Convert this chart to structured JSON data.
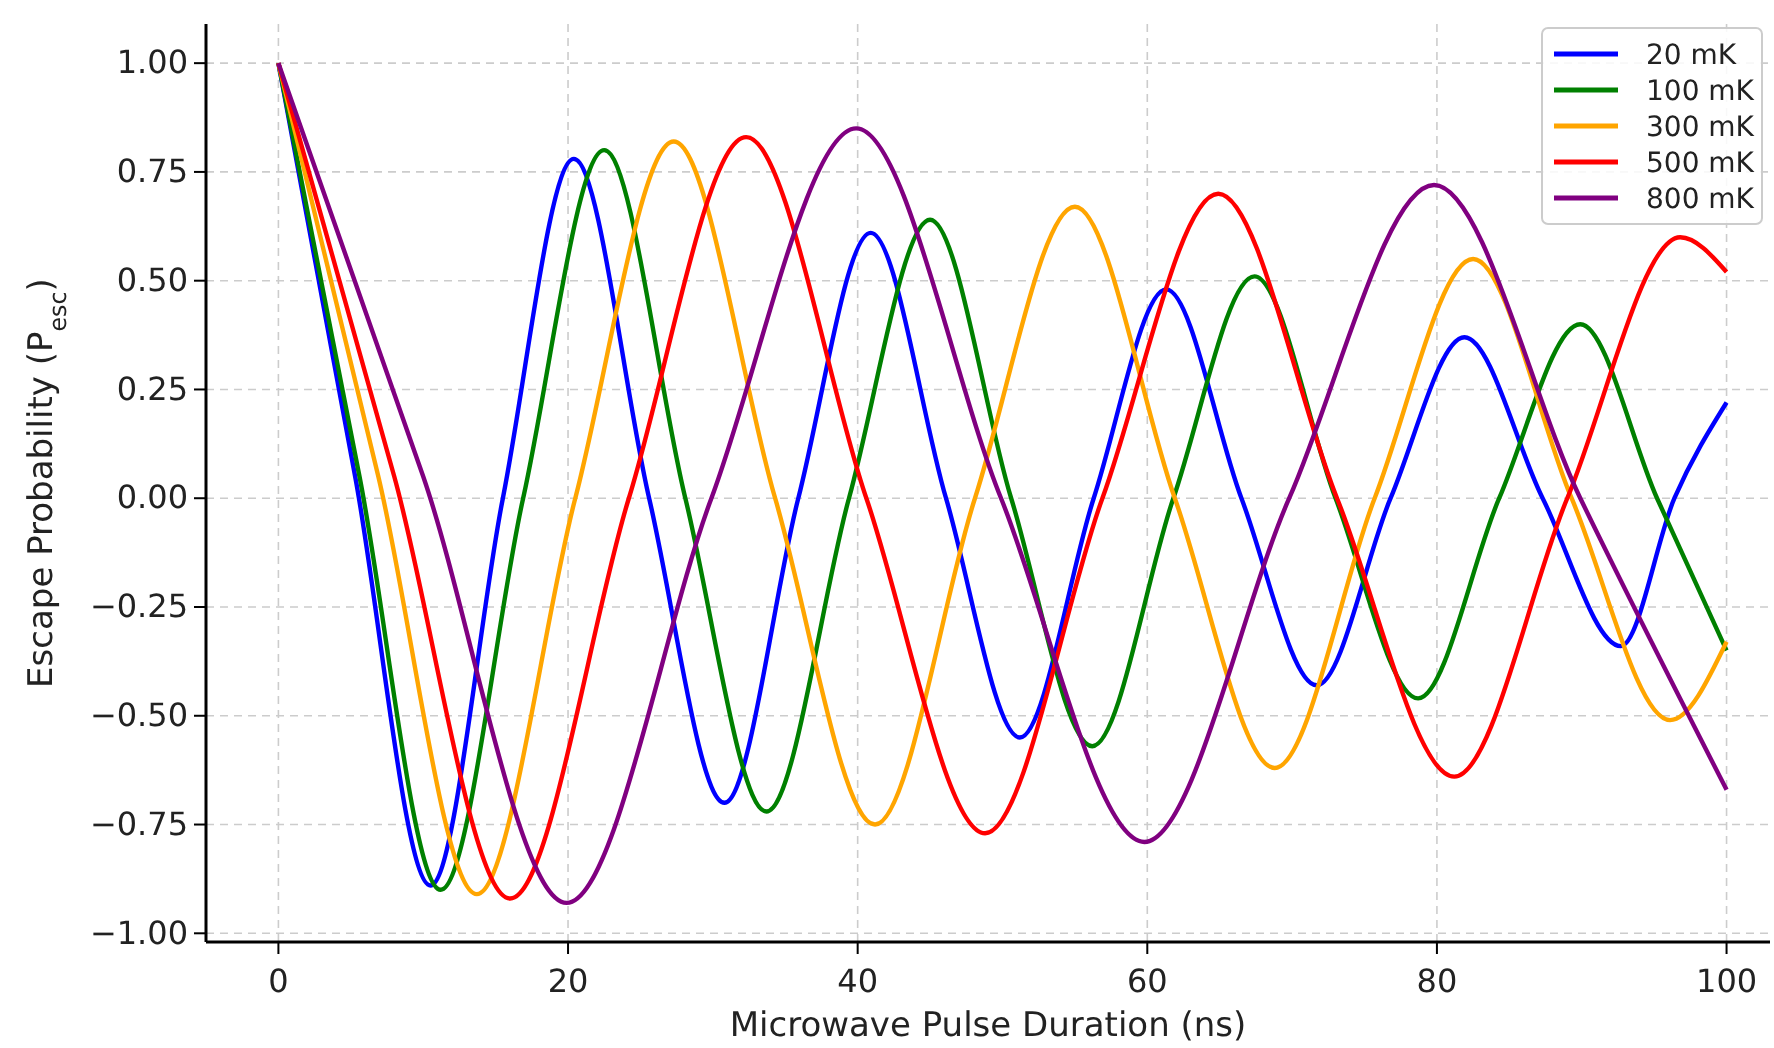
{
  "chart_data": {
    "type": "line",
    "xlabel": "Microwave Pulse Duration (ns)",
    "ylabel": "Escape Probability (P$_{esc}$)",
    "xlim": [
      -5,
      103
    ],
    "ylim": [
      -1.02,
      1.09
    ],
    "xticks": [
      0,
      20,
      40,
      60,
      80,
      100
    ],
    "yticks": [
      {
        "value": -1,
        "label": "−1.00"
      },
      {
        "value": -0.75,
        "label": "−0.75"
      },
      {
        "value": -0.5,
        "label": "−0.50"
      },
      {
        "value": -0.25,
        "label": "−0.25"
      },
      {
        "value": 0,
        "label": "0.00"
      },
      {
        "value": 0.25,
        "label": "0.25"
      },
      {
        "value": 0.5,
        "label": "0.50"
      },
      {
        "value": 0.75,
        "label": "0.75"
      },
      {
        "value": 1,
        "label": "1.00"
      }
    ],
    "grid": true,
    "legend": "top right",
    "line_style": "solid",
    "marker": "none",
    "series": [
      {
        "name": "20 mK",
        "color": "#0000ff",
        "x": [
          0,
          5.3,
          10.5,
          15.5,
          20.4,
          25.6,
          30.8,
          35.9,
          40.9,
          46.1,
          51.2,
          56.3,
          61.3,
          66.5,
          71.7,
          76.8,
          81.9,
          87.3,
          92.7,
          96.4,
          100
        ],
        "values": [
          1,
          0.05,
          -0.89,
          0,
          0.78,
          0,
          -0.7,
          0,
          0.61,
          0,
          -0.55,
          0,
          0.48,
          0,
          -0.43,
          0,
          0.37,
          0,
          -0.34,
          0,
          0.22
        ]
      },
      {
        "name": "100 mK",
        "color": "#008000",
        "x": [
          0,
          5.6,
          11.2,
          16.9,
          22.5,
          28.1,
          33.7,
          39.4,
          45,
          50.6,
          56.2,
          61.8,
          67.4,
          73,
          78.7,
          84.3,
          89.9,
          95.2,
          100
        ],
        "values": [
          1,
          0.05,
          -0.9,
          0,
          0.8,
          0,
          -0.72,
          0,
          0.64,
          0,
          -0.57,
          0,
          0.51,
          0,
          -0.46,
          0,
          0.4,
          0,
          -0.35
        ]
      },
      {
        "name": "300 mK",
        "color": "#ffa500",
        "x": [
          0,
          6.9,
          13.7,
          20.5,
          27.3,
          34.3,
          41.2,
          48.1,
          55,
          61.9,
          68.8,
          75.7,
          82.5,
          89.3,
          96.1,
          100
        ],
        "values": [
          1,
          0.05,
          -0.91,
          0,
          0.82,
          0,
          -0.75,
          0,
          0.67,
          0,
          -0.62,
          0,
          0.55,
          0,
          -0.51,
          -0.33
        ]
      },
      {
        "name": "500 mK",
        "color": "#ff0000",
        "x": [
          0,
          8,
          16,
          24.2,
          32.3,
          40.6,
          48.8,
          56.9,
          64.9,
          73.1,
          81.2,
          89,
          96.8,
          100
        ],
        "values": [
          1,
          0.05,
          -0.92,
          0,
          0.83,
          0,
          -0.77,
          0,
          0.7,
          0,
          -0.64,
          0,
          0.6,
          0.52
        ]
      },
      {
        "name": "800 mK",
        "color": "#800080",
        "x": [
          0,
          10,
          19.9,
          29.9,
          39.9,
          49.9,
          59.8,
          69.8,
          79.8,
          89.9,
          100
        ],
        "values": [
          1,
          0.05,
          -0.93,
          0,
          0.85,
          0,
          -0.79,
          0,
          0.72,
          0,
          -0.67
        ]
      }
    ]
  }
}
